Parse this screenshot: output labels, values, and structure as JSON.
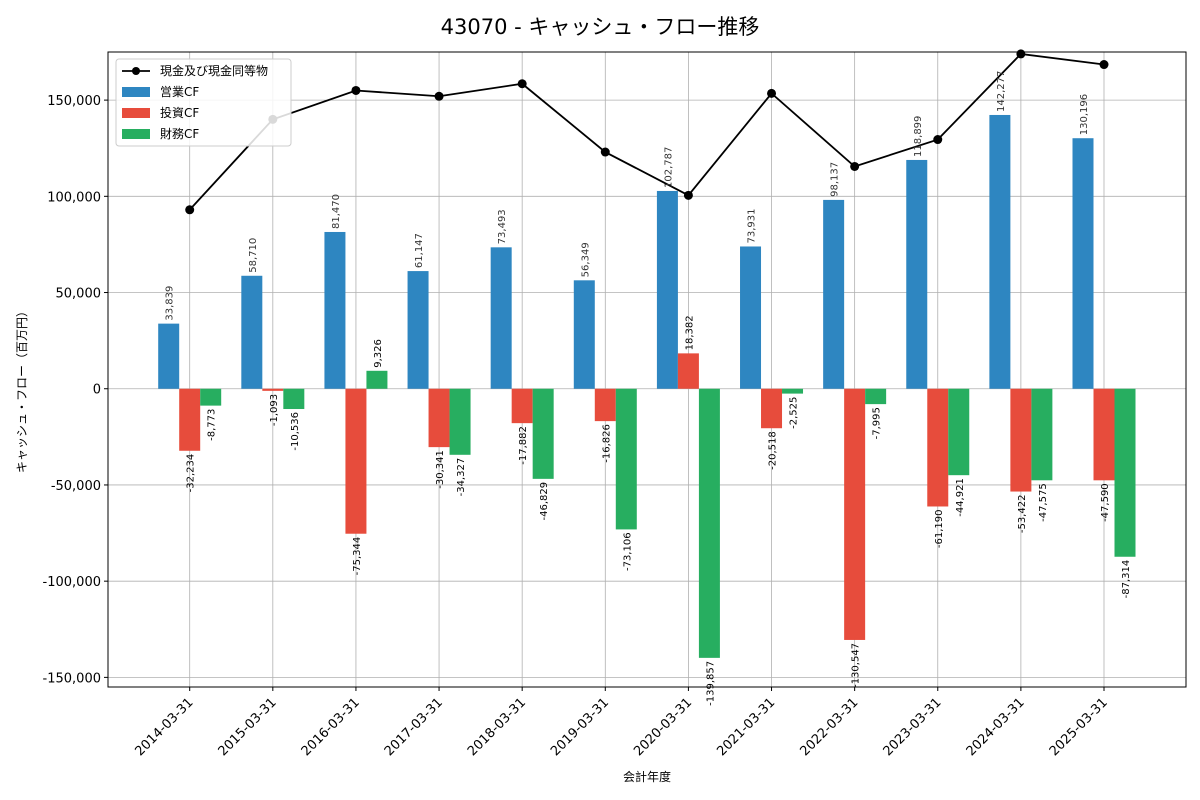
{
  "chart_data": {
    "type": "bar",
    "title": "43070 - キャッシュ・フロー推移",
    "xlabel": "会計年度",
    "ylabel": "キャッシュ・フロー（百万円）",
    "ylim": [
      -155000,
      175000
    ],
    "yticks": [
      -150000,
      -100000,
      -50000,
      0,
      50000,
      100000,
      150000
    ],
    "ytick_labels": [
      "-150,000",
      "-100,000",
      "-50,000",
      "0",
      "50,000",
      "100,000",
      "150,000"
    ],
    "grid": true,
    "legend_position": "top-left",
    "categories": [
      "2014-03-31",
      "2015-03-31",
      "2016-03-31",
      "2017-03-31",
      "2018-03-31",
      "2019-03-31",
      "2020-03-31",
      "2021-03-31",
      "2022-03-31",
      "2023-03-31",
      "2024-03-31",
      "2025-03-31"
    ],
    "series": [
      {
        "name": "営業CF",
        "kind": "bar",
        "color": "#2E86C1",
        "values": [
          33839,
          58710,
          81470,
          61147,
          73493,
          56349,
          102787,
          73931,
          98137,
          118899,
          142277,
          130196
        ],
        "labels": [
          "33,839",
          "58,710",
          "81,470",
          "61,147",
          "73,493",
          "56,349",
          "102,787",
          "73,931",
          "98,137",
          "118,899",
          "142,277",
          "130,196"
        ]
      },
      {
        "name": "投資CF",
        "kind": "bar",
        "color": "#E74C3C",
        "values": [
          -32234,
          -1093,
          -75344,
          -30341,
          -17882,
          -16826,
          18382,
          -20518,
          -130547,
          -61190,
          -53422,
          -47590
        ],
        "labels": [
          "-32,234",
          "-1,093",
          "-75,344",
          "-30,341",
          "-17,882",
          "-16,826",
          "18,382",
          "-20,518",
          "-130,547",
          "-61,190",
          "-53,422",
          "-47,590"
        ]
      },
      {
        "name": "財務CF",
        "kind": "bar",
        "color": "#27AE60",
        "values": [
          -8773,
          -10536,
          9326,
          -34327,
          -46829,
          -73106,
          -139857,
          -2525,
          -7995,
          -44921,
          -47575,
          -87314
        ],
        "labels": [
          "-8,773",
          "-10,536",
          "9,326",
          "-34,327",
          "-46,829",
          "-73,106",
          "-139,857",
          "-2,525",
          "-7,995",
          "-44,921",
          "-47,575",
          "-87,314"
        ]
      },
      {
        "name": "現金及び現金同等物",
        "kind": "line",
        "color": "#000000",
        "values": [
          93000,
          140000,
          155000,
          152000,
          158500,
          123000,
          100500,
          153500,
          115500,
          129500,
          174000,
          168500
        ]
      }
    ]
  }
}
